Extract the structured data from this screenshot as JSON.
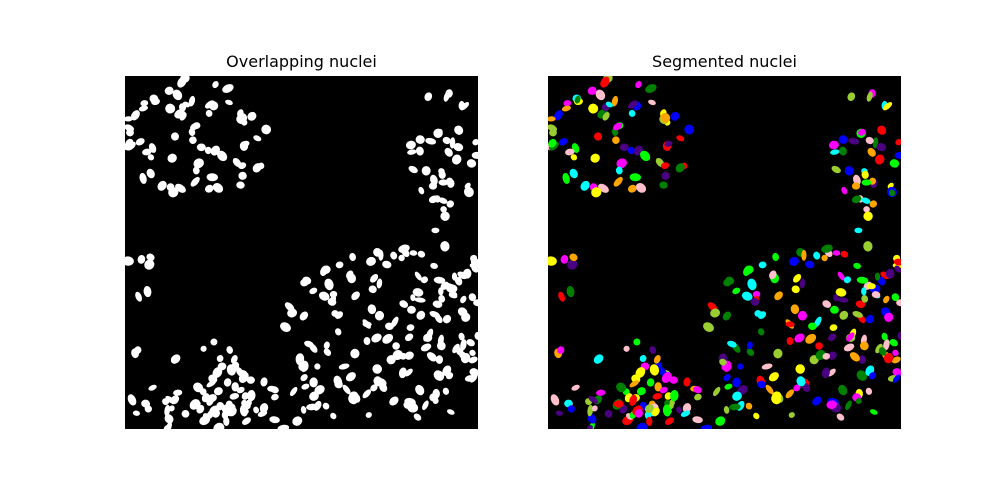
{
  "figure": {
    "panels": [
      {
        "title": "Overlapping nuclei",
        "style": "binary mask",
        "foreground_color": "#ffffff",
        "background_color": "#000000"
      },
      {
        "title": "Segmented nuclei",
        "style": "label overlay",
        "background_color": "#000000",
        "label_colors": [
          "#ff0000",
          "#00ffff",
          "#ff00ff",
          "#ffff00",
          "#0000ff",
          "#00ff00",
          "#ffa500",
          "#4b0082",
          "#ffc0cb",
          "#9acd32",
          "#008000"
        ]
      }
    ]
  }
}
